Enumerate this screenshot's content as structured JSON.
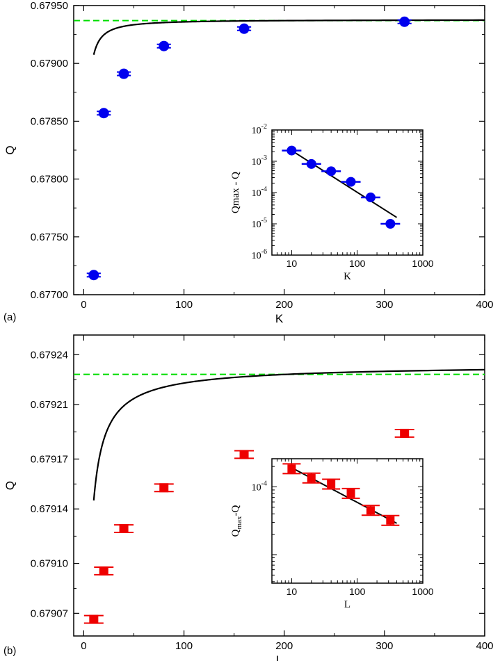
{
  "chart_data": [
    {
      "type": "scatter",
      "panel_label": "(a)",
      "xlabel": "K",
      "ylabel": "Q",
      "xlim": [
        -10,
        400
      ],
      "ylim": [
        0.677,
        0.6795
      ],
      "xticks": [
        0,
        100,
        200,
        300,
        400
      ],
      "xtick_labels": [
        "0",
        "100",
        "200",
        "300",
        "400"
      ],
      "yticks": [
        0.677,
        0.6775,
        0.678,
        0.6785,
        0.679,
        0.6795
      ],
      "ytick_labels": [
        "0.67700",
        "0.67750",
        "0.67800",
        "0.67850",
        "0.67900",
        "0.67950"
      ],
      "marker": "circle",
      "marker_color": "#0000ee",
      "errorbar_color": "#0000ee",
      "x": [
        10,
        20,
        40,
        80,
        160,
        320
      ],
      "y": [
        0.67717,
        0.67857,
        0.67891,
        0.67915,
        0.6793,
        0.67936
      ],
      "x_err": [
        7,
        7,
        7,
        7,
        7,
        7
      ],
      "fit_curve": {
        "qmax": 0.679378,
        "a": 0.0048,
        "b": 1.2,
        "x_start": 10,
        "x_end": 400,
        "color": "#000000"
      },
      "reference_line": {
        "y": 0.67937,
        "color": "#00dd00",
        "style": "dashed"
      },
      "inset": {
        "type": "scatter",
        "scale": "log-log",
        "xlabel": "K",
        "ylabel": "Qmax - Q",
        "xlim": [
          5,
          1000
        ],
        "ylim": [
          1e-06,
          0.01
        ],
        "xticks": [
          10,
          100,
          1000
        ],
        "xtick_labels": [
          "10",
          "100",
          "1000"
        ],
        "ytick_labels": [
          {
            "base": "10",
            "exp": "-6"
          },
          {
            "base": "10",
            "exp": "-5"
          },
          {
            "base": "10",
            "exp": "-4"
          },
          {
            "base": "10",
            "exp": "-3"
          },
          {
            "base": "10",
            "exp": "-2"
          }
        ],
        "x": [
          10,
          20,
          40,
          80,
          160,
          320
        ],
        "y": [
          0.0022,
          0.00082,
          0.00048,
          0.00022,
          7e-05,
          1e-05
        ],
        "fit_line": {
          "x": [
            10,
            400
          ],
          "y": [
            0.0022,
            1.6e-05
          ]
        }
      }
    },
    {
      "type": "scatter",
      "panel_label": "(b)",
      "xlabel": "L",
      "ylabel": "Q",
      "xlim": [
        -10,
        400
      ],
      "ylim": [
        0.679053,
        0.679252
      ],
      "xticks": [
        0,
        100,
        200,
        300,
        400
      ],
      "xtick_labels": [
        "0",
        "100",
        "200",
        "300",
        "400"
      ],
      "yticks": [
        0.679068,
        0.679101,
        0.679137,
        0.67917,
        0.679206,
        0.679239
      ],
      "ytick_labels": [
        "0.67907",
        "0.67910",
        "0.67914",
        "0.67917",
        "0.67921",
        "0.67924"
      ],
      "marker": "square",
      "marker_color": "#ee0000",
      "errorbar_color": "#ee0000",
      "x": [
        10,
        20,
        40,
        80,
        160,
        320
      ],
      "y": [
        0.679064,
        0.679096,
        0.679124,
        0.679151,
        0.679173,
        0.679187
      ],
      "y_err": [
        2.5e-06,
        2.5e-06,
        2.5e-06,
        2.5e-06,
        2.5e-06,
        2.5e-06
      ],
      "fit_curve": {
        "qmax": 0.679233,
        "a": 0.00064,
        "b": 0.85,
        "x_start": 10,
        "x_end": 400,
        "color": "#000000"
      },
      "reference_line": {
        "y": 0.679226,
        "color": "#00dd00",
        "style": "dashed"
      },
      "inset": {
        "type": "scatter",
        "scale": "log-log",
        "xlabel": "L",
        "ylabel": "Q",
        "ylabel_sub": "max",
        "ylabel_suffix": "-Q",
        "xlim": [
          5,
          1000
        ],
        "ylim": [
          3.8e-06,
          0.00026
        ],
        "xticks": [
          10,
          100,
          1000
        ],
        "xtick_labels": [
          "10",
          "100",
          "1000"
        ],
        "ytick_labels": [
          {
            "base": "10",
            "exp": "-4",
            "value": 0.0001
          }
        ],
        "x": [
          10,
          20,
          40,
          80,
          160,
          320
        ],
        "y": [
          0.000185,
          0.000135,
          0.00011,
          8e-05,
          4.5e-05,
          3.2e-05
        ],
        "fit_line": {
          "x": [
            10,
            400
          ],
          "y": [
            0.000192,
            2.9e-05
          ]
        }
      }
    }
  ]
}
